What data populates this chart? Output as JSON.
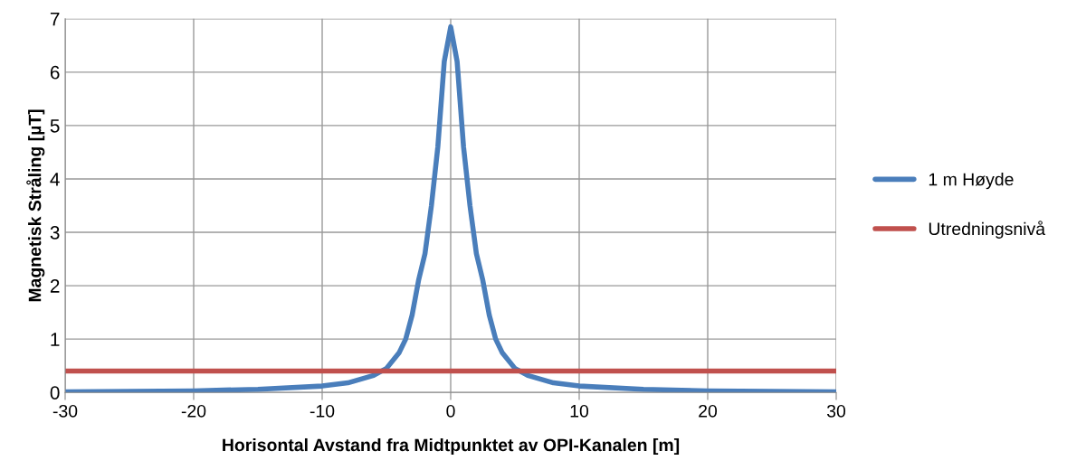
{
  "chart_data": {
    "type": "line",
    "xlabel": "Horisontal Avstand fra Midtpunktet av OPI-Kanalen [m]",
    "ylabel": "Magnetisk Stråling [µT]",
    "xlim": [
      -30,
      30
    ],
    "ylim": [
      0,
      7
    ],
    "xticks": [
      -30,
      -20,
      -10,
      0,
      10,
      20,
      30
    ],
    "yticks": [
      0,
      1,
      2,
      3,
      4,
      5,
      6,
      7
    ],
    "grid": true,
    "legend": "right",
    "marker": "none",
    "line_style": "solid",
    "series": [
      {
        "name": "1 m Høyde",
        "color": "#4a7ebb",
        "x": [
          -30,
          -25,
          -20,
          -15,
          -10,
          -8,
          -6,
          -5,
          -4,
          -3.5,
          -3,
          -2.5,
          -2,
          -1.5,
          -1,
          -0.5,
          0,
          0.5,
          1,
          1.5,
          2,
          2.5,
          3,
          3.5,
          4,
          5,
          6,
          8,
          10,
          15,
          20,
          25,
          30
        ],
        "values": [
          0.01,
          0.02,
          0.03,
          0.06,
          0.12,
          0.18,
          0.32,
          0.45,
          0.75,
          1.0,
          1.45,
          2.1,
          2.6,
          3.5,
          4.6,
          6.2,
          6.85,
          6.2,
          4.6,
          3.5,
          2.6,
          2.1,
          1.45,
          1.0,
          0.75,
          0.45,
          0.32,
          0.18,
          0.12,
          0.06,
          0.03,
          0.02,
          0.01
        ]
      },
      {
        "name": "Utredningsnivå",
        "color": "#c0504d",
        "x": [
          -30,
          30
        ],
        "values": [
          0.4,
          0.4
        ]
      }
    ]
  }
}
